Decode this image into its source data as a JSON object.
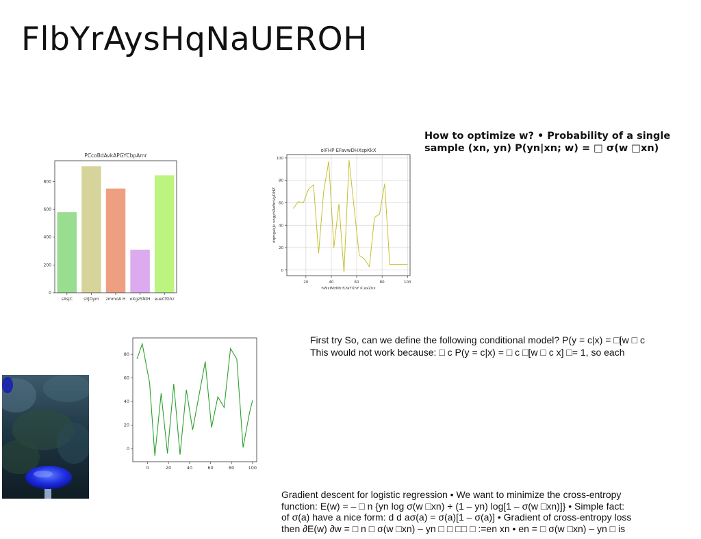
{
  "slide": {
    "title": "FlbYrAysHqNaUEROH"
  },
  "text_blocks": {
    "block1": [
      "How to optimize w? • Probability of a single",
      "sample (xn, yn) P(yn|xn; w) = □ σ(w □xn)"
    ],
    "block2": [
      "First try So, can we define the following conditional model? P(y = c|x) = □[w □ c",
      "This would not work because: □ c P(y = c|x) = □ c □[w □ c x] □= 1, so each"
    ],
    "block3": [
      "Gradient descent for logistic regression • We want to minimize the cross-entropy",
      "function: E(w) = – □ n {yn log σ(w □xn) + (1 – yn) log[1 – σ(w □xn)]} • Simple fact:",
      "of σ(a) have a nice form: d d aσ(a) = σ(a)[1 – σ(a)] • Gradient of cross-entropy loss",
      "then ∂E(w) ∂w = □ n □ σ(w □xn) – yn □ □ □□ □ :=en xn • en = □ σ(w □xn) – yn □ is"
    ]
  },
  "chart_data": [
    {
      "type": "bar",
      "title": "PCcoBdAvkAPGYCbpAmr",
      "categories": [
        "sXsjC",
        "sYJDym",
        "zmmoA H",
        "oXgzSNtH",
        "eueCfGhz"
      ],
      "values": [
        580,
        910,
        750,
        310,
        845
      ],
      "colors": [
        "#99dd91",
        "#d6d49a",
        "#ee9f82",
        "#dcaaee",
        "#bbf57f"
      ],
      "ylim": [
        0,
        950
      ],
      "yticks": [
        0,
        200,
        400,
        600,
        800
      ],
      "xlabel": "",
      "ylabel": "",
      "grid": false
    },
    {
      "type": "line",
      "title": "oIFHP EFavwDHXspKkX",
      "xlabel": "hWxlMzNh fLfaYXhY iCaxZnx",
      "ylabel": "dqmgakjk vngyhRafbnVyDHZ",
      "color": "#c4c02e",
      "x": [
        10,
        14,
        18,
        22,
        26,
        30,
        34,
        38,
        42,
        46,
        50,
        54,
        58,
        62,
        66,
        70,
        74,
        78,
        82,
        86,
        90,
        94,
        98,
        100
      ],
      "y": [
        55,
        61,
        60,
        72,
        76,
        15,
        70,
        97,
        20,
        59,
        -2,
        98,
        55,
        13,
        10,
        3,
        47,
        50,
        77,
        5,
        5,
        5,
        5,
        5
      ],
      "xlim": [
        5,
        102
      ],
      "ylim": [
        -5,
        103
      ],
      "xticks": [
        20,
        40,
        60,
        80,
        100
      ],
      "yticks": [
        0,
        20,
        40,
        60,
        80,
        100
      ],
      "grid": true
    },
    {
      "type": "line",
      "title": "",
      "xlabel": "",
      "ylabel": "",
      "color": "#2ca02c",
      "x": [
        -10,
        -5,
        2,
        7,
        13,
        19,
        25,
        31,
        37,
        43,
        49,
        55,
        61,
        67,
        73,
        79,
        85,
        91,
        97,
        100
      ],
      "y": [
        76,
        89,
        56,
        -6,
        47,
        -4,
        55,
        -5,
        50,
        16,
        45,
        74,
        18,
        44,
        35,
        85,
        76,
        1,
        30,
        41
      ],
      "xlim": [
        -14,
        104
      ],
      "ylim": [
        -11,
        94
      ],
      "xticks": [
        0,
        20,
        40,
        60,
        80,
        100
      ],
      "yticks": [
        0,
        20,
        40,
        60,
        80
      ],
      "grid": false
    }
  ]
}
